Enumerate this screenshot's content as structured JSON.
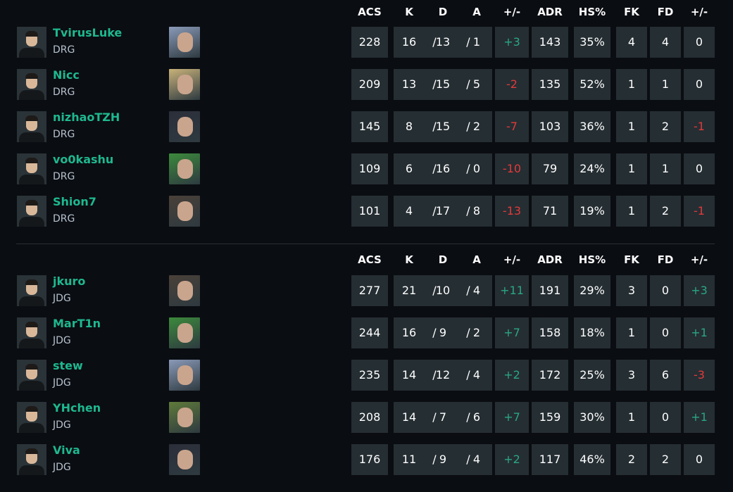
{
  "headers": {
    "acs": "ACS",
    "k": "K",
    "d": "D",
    "a": "A",
    "pm": "+/-",
    "adr": "ADR",
    "hs": "HS%",
    "fk": "FK",
    "fd": "FD",
    "fpm": "+/-"
  },
  "colors": {
    "name": "#1eb88f",
    "positive": "#2aa686",
    "negative": "#e23a3a",
    "cell": "#252e33",
    "background": "#0a0d12"
  },
  "teams": [
    {
      "players": [
        {
          "name": "TvirusLuke",
          "team": "DRG",
          "agent_color": "#8a9ab8",
          "acs": "228",
          "k": "16",
          "d": "13",
          "a": "1",
          "pm": "+3",
          "adr": "143",
          "hs": "35%",
          "fk": "4",
          "fd": "4",
          "fpm": "0"
        },
        {
          "name": "Nicc",
          "team": "DRG",
          "agent_color": "#c9b27a",
          "acs": "209",
          "k": "13",
          "d": "15",
          "a": "5",
          "pm": "-2",
          "adr": "135",
          "hs": "52%",
          "fk": "1",
          "fd": "1",
          "fpm": "0"
        },
        {
          "name": "nizhaoTZH",
          "team": "DRG",
          "agent_color": "#2b2e3a",
          "acs": "145",
          "k": "8",
          "d": "15",
          "a": "2",
          "pm": "-7",
          "adr": "103",
          "hs": "36%",
          "fk": "1",
          "fd": "2",
          "fpm": "-1"
        },
        {
          "name": "vo0kashu",
          "team": "DRG",
          "agent_color": "#3c8a3c",
          "acs": "109",
          "k": "6",
          "d": "16",
          "a": "0",
          "pm": "-10",
          "adr": "79",
          "hs": "24%",
          "fk": "1",
          "fd": "1",
          "fpm": "0"
        },
        {
          "name": "Shion7",
          "team": "DRG",
          "agent_color": "#4a4038",
          "acs": "101",
          "k": "4",
          "d": "17",
          "a": "8",
          "pm": "-13",
          "adr": "71",
          "hs": "19%",
          "fk": "1",
          "fd": "2",
          "fpm": "-1"
        }
      ]
    },
    {
      "players": [
        {
          "name": "jkuro",
          "team": "JDG",
          "agent_color": "#4a4038",
          "acs": "277",
          "k": "21",
          "d": "10",
          "a": "4",
          "pm": "+11",
          "adr": "191",
          "hs": "29%",
          "fk": "3",
          "fd": "0",
          "fpm": "+3"
        },
        {
          "name": "MarT1n",
          "team": "JDG",
          "agent_color": "#3c8a3c",
          "acs": "244",
          "k": "16",
          "d": "9",
          "a": "2",
          "pm": "+7",
          "adr": "158",
          "hs": "18%",
          "fk": "1",
          "fd": "0",
          "fpm": "+1"
        },
        {
          "name": "stew",
          "team": "JDG",
          "agent_color": "#8a9ab8",
          "acs": "235",
          "k": "14",
          "d": "12",
          "a": "4",
          "pm": "+2",
          "adr": "172",
          "hs": "25%",
          "fk": "3",
          "fd": "6",
          "fpm": "-3"
        },
        {
          "name": "YHchen",
          "team": "JDG",
          "agent_color": "#5f7a3a",
          "acs": "208",
          "k": "14",
          "d": "7",
          "a": "6",
          "pm": "+7",
          "adr": "159",
          "hs": "30%",
          "fk": "1",
          "fd": "0",
          "fpm": "+1"
        },
        {
          "name": "Viva",
          "team": "JDG",
          "agent_color": "#2b2e3a",
          "acs": "176",
          "k": "11",
          "d": "9",
          "a": "4",
          "pm": "+2",
          "adr": "117",
          "hs": "46%",
          "fk": "2",
          "fd": "2",
          "fpm": "0"
        }
      ]
    }
  ]
}
